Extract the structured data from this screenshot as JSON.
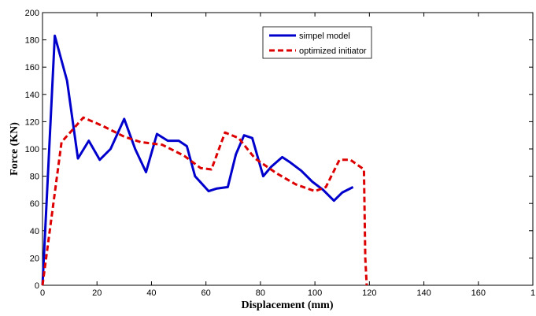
{
  "chart_data": {
    "type": "line",
    "title": "",
    "xlabel": "Displacement (mm)",
    "ylabel": "Force (KN)",
    "xlim": [
      0,
      180
    ],
    "ylim": [
      0,
      200
    ],
    "xticks": [
      "0",
      "20",
      "40",
      "60",
      "80",
      "100",
      "120",
      "140",
      "160",
      "1"
    ],
    "yticks": [
      "0",
      "20",
      "40",
      "60",
      "80",
      "100",
      "120",
      "140",
      "160",
      "180",
      "200"
    ],
    "grid": false,
    "legend_position": "top-center",
    "series": [
      {
        "name": "simpel model",
        "color": "#0000cc",
        "style": "solid",
        "x": [
          0,
          4.5,
          9,
          13,
          17,
          21,
          25,
          30,
          34,
          38,
          42,
          46,
          50,
          53,
          56,
          61,
          64,
          68,
          71,
          74,
          77,
          81,
          84,
          88,
          91,
          95,
          99,
          103,
          107,
          110,
          114
        ],
        "y": [
          0,
          183,
          150,
          93,
          106,
          92,
          100,
          122,
          100,
          83,
          111,
          106,
          106,
          102,
          80,
          69,
          71,
          72,
          96,
          110,
          108,
          80,
          87,
          94,
          90,
          84,
          76,
          70,
          62,
          68,
          72
        ]
      },
      {
        "name": "optimized initiator",
        "color": "#dd0000",
        "style": "dashed",
        "x": [
          0,
          7,
          15,
          22,
          30,
          36,
          44,
          52,
          58,
          62,
          67,
          72,
          78,
          86,
          93,
          100,
          104,
          109,
          113,
          118,
          118.5,
          119
        ],
        "y": [
          0,
          105,
          123,
          117,
          109,
          105,
          103,
          95,
          86,
          85,
          112,
          108,
          93,
          82,
          74,
          69,
          72,
          92,
          92,
          85,
          20,
          0
        ]
      }
    ]
  }
}
